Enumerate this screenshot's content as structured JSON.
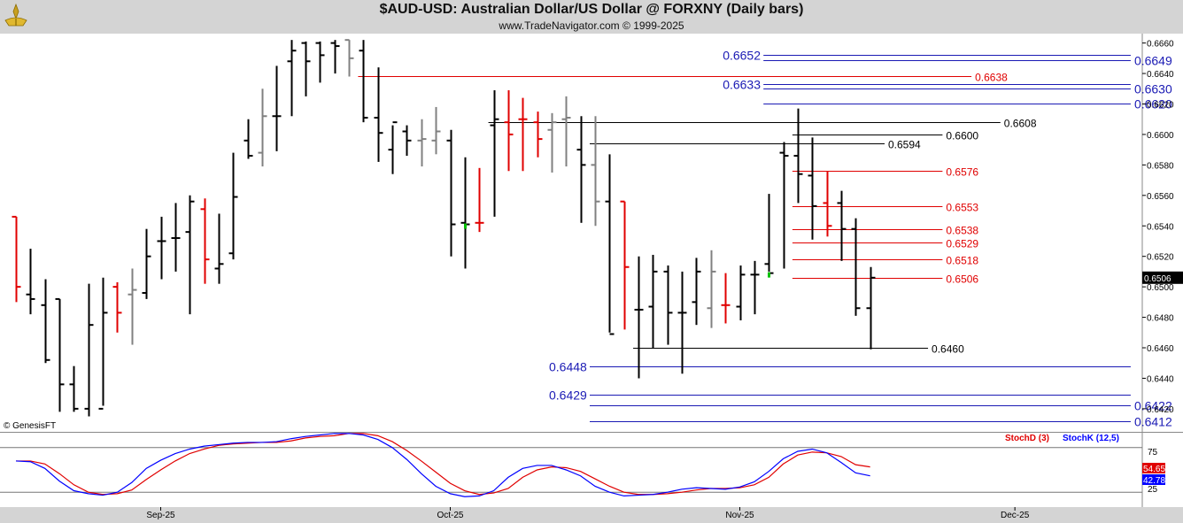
{
  "header": {
    "title": "$AUD-USD:  Australian Dollar/US Dollar @ FORXNY  (Daily bars)",
    "subtitle": "www.TradeNavigator.com © 1999-2025"
  },
  "watermark": "© GenesisFT",
  "colors": {
    "up_bar": "#000000",
    "down_bar": "#e00000",
    "neutral_bar": "#808080",
    "highlight_bar": "#00c000",
    "blue_level": "#1a1ab4",
    "red_level": "#e00000",
    "black_level": "#000000",
    "stoch_d": "#e00000",
    "stoch_k": "#0000ff"
  },
  "chart_data": [
    {
      "type": "ohlc",
      "title": "$AUD-USD:  Australian Dollar/US Dollar @ FORXNY  (Daily bars)",
      "ylim": [
        0.6406,
        0.6665
      ],
      "y_ticks": [
        "0.6660",
        "0.6640",
        "0.6620",
        "0.6600",
        "0.6580",
        "0.6560",
        "0.6540",
        "0.6520",
        "0.6500",
        "0.6480",
        "0.6460",
        "0.6440",
        "0.6420"
      ],
      "last_price": "0.6506",
      "x_ticks": [
        {
          "index": 10,
          "label": "Sep-25"
        },
        {
          "index": 30,
          "label": "Oct-25"
        },
        {
          "index": 50,
          "label": "Nov-25"
        },
        {
          "index": 69,
          "label": "Dec-25"
        }
      ],
      "bars": [
        {
          "o": 0.6546,
          "h": 0.6546,
          "l": 0.649,
          "c": 0.65,
          "dir": "down"
        },
        {
          "o": 0.6495,
          "h": 0.6525,
          "l": 0.6482,
          "c": 0.6492,
          "dir": "up"
        },
        {
          "o": 0.6488,
          "h": 0.6505,
          "l": 0.645,
          "c": 0.6452,
          "dir": "up"
        },
        {
          "o": 0.6492,
          "h": 0.6492,
          "l": 0.6418,
          "c": 0.6436,
          "dir": "up"
        },
        {
          "o": 0.6436,
          "h": 0.6448,
          "l": 0.6418,
          "c": 0.642,
          "dir": "up"
        },
        {
          "o": 0.642,
          "h": 0.6502,
          "l": 0.6415,
          "c": 0.6475,
          "dir": "up"
        },
        {
          "o": 0.642,
          "h": 0.6506,
          "l": 0.6422,
          "c": 0.6483,
          "dir": "up"
        },
        {
          "o": 0.65,
          "h": 0.6503,
          "l": 0.647,
          "c": 0.6483,
          "dir": "down"
        },
        {
          "o": 0.6495,
          "h": 0.6512,
          "l": 0.6462,
          "c": 0.6498,
          "dir": "neutral"
        },
        {
          "o": 0.6496,
          "h": 0.6538,
          "l": 0.6492,
          "c": 0.652,
          "dir": "up"
        },
        {
          "o": 0.653,
          "h": 0.6546,
          "l": 0.6505,
          "c": 0.653,
          "dir": "up"
        },
        {
          "o": 0.6532,
          "h": 0.6555,
          "l": 0.651,
          "c": 0.6532,
          "dir": "up"
        },
        {
          "o": 0.6536,
          "h": 0.656,
          "l": 0.6482,
          "c": 0.6556,
          "dir": "up"
        },
        {
          "o": 0.6551,
          "h": 0.6558,
          "l": 0.6502,
          "c": 0.6518,
          "dir": "down"
        },
        {
          "o": 0.6512,
          "h": 0.6548,
          "l": 0.6502,
          "c": 0.6515,
          "dir": "up"
        },
        {
          "o": 0.6522,
          "h": 0.6588,
          "l": 0.6518,
          "c": 0.6559,
          "dir": "up"
        },
        {
          "o": 0.6596,
          "h": 0.661,
          "l": 0.6584,
          "c": 0.6586,
          "dir": "up"
        },
        {
          "o": 0.6588,
          "h": 0.663,
          "l": 0.6579,
          "c": 0.6612,
          "dir": "neutral"
        },
        {
          "o": 0.6612,
          "h": 0.6645,
          "l": 0.6589,
          "c": 0.6612,
          "dir": "up"
        },
        {
          "o": 0.6648,
          "h": 0.6662,
          "l": 0.6612,
          "c": 0.6655,
          "dir": "up"
        },
        {
          "o": 0.666,
          "h": 0.6661,
          "l": 0.6625,
          "c": 0.6648,
          "dir": "up"
        },
        {
          "o": 0.666,
          "h": 0.6661,
          "l": 0.6634,
          "c": 0.6652,
          "dir": "up"
        },
        {
          "o": 0.666,
          "h": 0.6662,
          "l": 0.664,
          "c": 0.6658,
          "dir": "up"
        },
        {
          "o": 0.6662,
          "h": 0.6662,
          "l": 0.6638,
          "c": 0.665,
          "dir": "neutral"
        },
        {
          "o": 0.6655,
          "h": 0.6662,
          "l": 0.6608,
          "c": 0.6611,
          "dir": "up"
        },
        {
          "o": 0.6611,
          "h": 0.6644,
          "l": 0.6582,
          "c": 0.6601,
          "dir": "up"
        },
        {
          "o": 0.659,
          "h": 0.6606,
          "l": 0.6574,
          "c": 0.6608,
          "dir": "up"
        },
        {
          "o": 0.6602,
          "h": 0.6606,
          "l": 0.6586,
          "c": 0.6596,
          "dir": "up"
        },
        {
          "o": 0.6596,
          "h": 0.661,
          "l": 0.6579,
          "c": 0.6597,
          "dir": "neutral"
        },
        {
          "o": 0.6596,
          "h": 0.6618,
          "l": 0.6587,
          "c": 0.6602,
          "dir": "neutral"
        },
        {
          "o": 0.6596,
          "h": 0.6603,
          "l": 0.652,
          "c": 0.6541,
          "dir": "up"
        },
        {
          "o": 0.6542,
          "h": 0.6585,
          "l": 0.6512,
          "c": 0.6541,
          "dir": "up"
        },
        {
          "o": 0.6542,
          "h": 0.6578,
          "l": 0.6536,
          "c": 0.6542,
          "dir": "down"
        },
        {
          "o": 0.6606,
          "h": 0.6629,
          "l": 0.6546,
          "c": 0.661,
          "dir": "up"
        },
        {
          "o": 0.6608,
          "h": 0.6629,
          "l": 0.6576,
          "c": 0.66,
          "dir": "down"
        },
        {
          "o": 0.661,
          "h": 0.6624,
          "l": 0.6576,
          "c": 0.661,
          "dir": "down"
        },
        {
          "o": 0.6608,
          "h": 0.6615,
          "l": 0.6585,
          "c": 0.6597,
          "dir": "down"
        },
        {
          "o": 0.6603,
          "h": 0.6614,
          "l": 0.6575,
          "c": 0.6608,
          "dir": "neutral"
        },
        {
          "o": 0.661,
          "h": 0.6625,
          "l": 0.6579,
          "c": 0.6611,
          "dir": "neutral"
        },
        {
          "o": 0.659,
          "h": 0.6612,
          "l": 0.6542,
          "c": 0.658,
          "dir": "up"
        },
        {
          "o": 0.658,
          "h": 0.6612,
          "l": 0.654,
          "c": 0.6556,
          "dir": "neutral"
        },
        {
          "o": 0.6556,
          "h": 0.6587,
          "l": 0.647,
          "c": 0.6469,
          "dir": "up"
        },
        {
          "o": 0.6556,
          "h": 0.6556,
          "l": 0.6472,
          "c": 0.6513,
          "dir": "down"
        },
        {
          "o": 0.6485,
          "h": 0.652,
          "l": 0.644,
          "c": 0.6485,
          "dir": "up"
        },
        {
          "o": 0.6487,
          "h": 0.6521,
          "l": 0.646,
          "c": 0.651,
          "dir": "up"
        },
        {
          "o": 0.651,
          "h": 0.6514,
          "l": 0.6462,
          "c": 0.6483,
          "dir": "up"
        },
        {
          "o": 0.6483,
          "h": 0.651,
          "l": 0.6443,
          "c": 0.6483,
          "dir": "up"
        },
        {
          "o": 0.649,
          "h": 0.6519,
          "l": 0.6475,
          "c": 0.651,
          "dir": "up"
        },
        {
          "o": 0.6486,
          "h": 0.6524,
          "l": 0.6473,
          "c": 0.651,
          "dir": "neutral"
        },
        {
          "o": 0.6488,
          "h": 0.6509,
          "l": 0.6476,
          "c": 0.6488,
          "dir": "down"
        },
        {
          "o": 0.6487,
          "h": 0.6514,
          "l": 0.6478,
          "c": 0.6508,
          "dir": "up"
        },
        {
          "o": 0.6508,
          "h": 0.6517,
          "l": 0.6482,
          "c": 0.6508,
          "dir": "up"
        },
        {
          "o": 0.6515,
          "h": 0.6561,
          "l": 0.651,
          "c": 0.6509,
          "dir": "up"
        },
        {
          "o": 0.6588,
          "h": 0.6595,
          "l": 0.6512,
          "c": 0.6586,
          "dir": "up"
        },
        {
          "o": 0.6586,
          "h": 0.6617,
          "l": 0.6555,
          "c": 0.6574,
          "dir": "up"
        },
        {
          "o": 0.6573,
          "h": 0.6598,
          "l": 0.6531,
          "c": 0.6553,
          "dir": "up"
        },
        {
          "o": 0.6555,
          "h": 0.6576,
          "l": 0.6533,
          "c": 0.654,
          "dir": "down"
        },
        {
          "o": 0.6555,
          "h": 0.6563,
          "l": 0.6517,
          "c": 0.6538,
          "dir": "up"
        },
        {
          "o": 0.6538,
          "h": 0.6545,
          "l": 0.6481,
          "c": 0.6486,
          "dir": "up"
        },
        {
          "o": 0.6486,
          "h": 0.6513,
          "l": 0.6459,
          "c": 0.6506,
          "dir": "up"
        }
      ],
      "levels": [
        {
          "value": 0.6652,
          "label": "0.6652",
          "color": "blue",
          "start": 52,
          "end": 77,
          "label_side": "left"
        },
        {
          "value": 0.6649,
          "label": "0.6649",
          "color": "blue",
          "start": 52,
          "end": 77,
          "label_side": "right"
        },
        {
          "value": 0.6638,
          "label": "0.6638",
          "color": "red",
          "start": 24,
          "end": 66,
          "label_side": "right"
        },
        {
          "value": 0.6633,
          "label": "0.6633",
          "color": "blue",
          "start": 52,
          "end": 77,
          "label_side": "left"
        },
        {
          "value": 0.663,
          "label": "0.6630",
          "color": "blue",
          "start": 52,
          "end": 77,
          "label_side": "right"
        },
        {
          "value": 0.662,
          "label": "0.6620",
          "color": "blue",
          "start": 52,
          "end": 77,
          "label_side": "right"
        },
        {
          "value": 0.6608,
          "label": "0.6608",
          "color": "black",
          "start": 33,
          "end": 68,
          "label_side": "right"
        },
        {
          "value": 0.66,
          "label": "0.6600",
          "color": "black",
          "start": 54,
          "end": 64,
          "label_side": "right"
        },
        {
          "value": 0.6594,
          "label": "0.6594",
          "color": "black",
          "start": 40,
          "end": 60,
          "label_side": "right"
        },
        {
          "value": 0.6576,
          "label": "0.6576",
          "color": "red",
          "start": 54,
          "end": 64,
          "label_side": "right"
        },
        {
          "value": 0.6553,
          "label": "0.6553",
          "color": "red",
          "start": 54,
          "end": 64,
          "label_side": "right"
        },
        {
          "value": 0.6538,
          "label": "0.6538",
          "color": "red",
          "start": 54,
          "end": 64,
          "label_side": "right"
        },
        {
          "value": 0.6529,
          "label": "0.6529",
          "color": "red",
          "start": 54,
          "end": 64,
          "label_side": "right"
        },
        {
          "value": 0.6518,
          "label": "0.6518",
          "color": "red",
          "start": 54,
          "end": 64,
          "label_side": "right"
        },
        {
          "value": 0.6506,
          "label": "0.6506",
          "color": "red",
          "start": 54,
          "end": 64,
          "label_side": "right"
        },
        {
          "value": 0.646,
          "label": "0.6460",
          "color": "black",
          "start": 43,
          "end": 63,
          "label_side": "right"
        },
        {
          "value": 0.6448,
          "label": "0.6448",
          "color": "blue",
          "start": 40,
          "end": 77,
          "label_side": "left"
        },
        {
          "value": 0.6429,
          "label": "0.6429",
          "color": "blue",
          "start": 40,
          "end": 77,
          "label_side": "left"
        },
        {
          "value": 0.6422,
          "label": "0.6422",
          "color": "blue",
          "start": 40,
          "end": 77,
          "label_side": "right"
        },
        {
          "value": 0.6412,
          "label": "0.6412",
          "color": "blue",
          "start": 40,
          "end": 77,
          "label_side": "right"
        }
      ]
    },
    {
      "type": "line",
      "ylim": [
        0,
        100
      ],
      "y_ticks": [
        "75",
        "25"
      ],
      "ref_lines": [
        80,
        20
      ],
      "series": [
        {
          "name": "StochD (3)",
          "color": "#e00000",
          "values": [
            62,
            62,
            58,
            45,
            30,
            20,
            17,
            18,
            23,
            37,
            50,
            62,
            72,
            78,
            83,
            85,
            86,
            87,
            87,
            89,
            93,
            95,
            96,
            99,
            99,
            96,
            88,
            76,
            62,
            47,
            32,
            22,
            17,
            19,
            25,
            40,
            50,
            54,
            53,
            48,
            38,
            28,
            20,
            17,
            17,
            18,
            20,
            23,
            25,
            25,
            26,
            30,
            40,
            58,
            70,
            74,
            73,
            68,
            57,
            54
          ]
        },
        {
          "name": "StochK (12,5)",
          "color": "#0000ff",
          "values": [
            62,
            61,
            52,
            35,
            22,
            18,
            16,
            20,
            33,
            52,
            63,
            72,
            78,
            82,
            84,
            86,
            87,
            87,
            88,
            92,
            95,
            97,
            99,
            99,
            97,
            91,
            80,
            64,
            45,
            28,
            18,
            14,
            15,
            22,
            40,
            52,
            56,
            56,
            50,
            42,
            28,
            20,
            15,
            16,
            17,
            20,
            24,
            26,
            25,
            24,
            27,
            34,
            48,
            65,
            75,
            78,
            73,
            60,
            46,
            42
          ]
        }
      ],
      "value_labels": [
        {
          "text": "54.65",
          "color": "#e00000"
        },
        {
          "text": "42.78",
          "color": "#0000ff"
        }
      ]
    }
  ]
}
